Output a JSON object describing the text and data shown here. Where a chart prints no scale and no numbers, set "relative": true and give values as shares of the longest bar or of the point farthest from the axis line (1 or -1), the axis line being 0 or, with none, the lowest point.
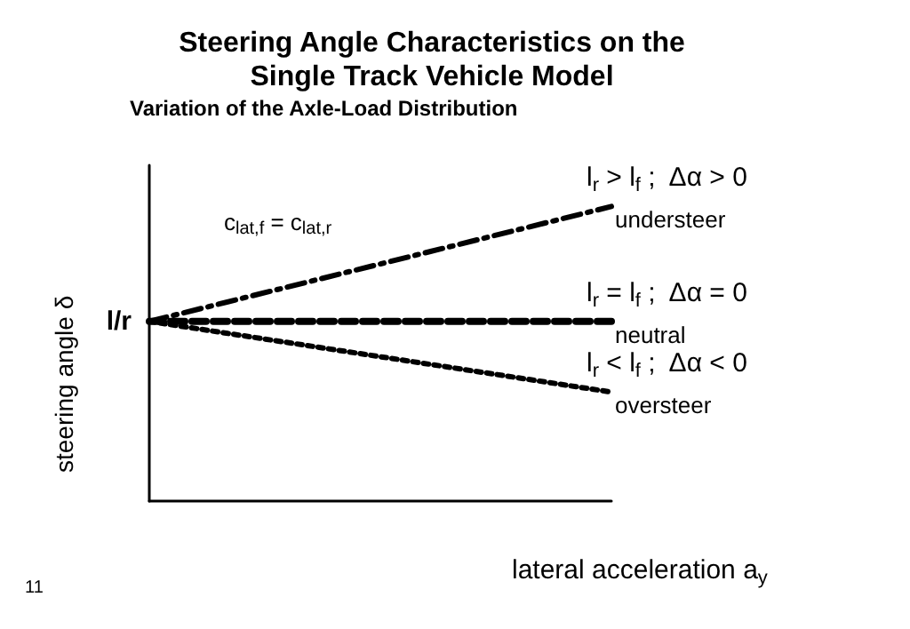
{
  "chart_data": {
    "type": "line",
    "title": "Steering Angle Characteristics on the\nSingle Track Vehicle Model",
    "subtitle": "Variation of the Axle-Load Distribution",
    "xlabel": "lateral acceleration a$_{y}$",
    "ylabel": "steering angle δ",
    "relative": true,
    "categories": [
      null,
      null
    ],
    "series": [
      {
        "name": "understeer",
        "color": "#000000",
        "line_style": "dashdot",
        "values": [
          0.61,
          1
        ]
      },
      {
        "name": "neutral",
        "color": "#000000",
        "line_style": "dashed",
        "values": [
          0.61,
          0.61
        ]
      },
      {
        "name": "oversteer",
        "color": "#000000",
        "line_style": "dotted",
        "values": [
          0.61,
          0.37
        ]
      }
    ],
    "annotations": [
      "c$_{lat,f}$ = c$_{lat,r}$",
      "l/r",
      "l$_{r}$ > l$_{f}$ ;  Δα > 0",
      "l$_{r}$ = l$_{f}$ ;  Δα = 0",
      "l$_{r}$ < l$_{f}$ ;  Δα < 0",
      "11"
    ],
    "marker": "none",
    "legend": false,
    "grid": false
  }
}
